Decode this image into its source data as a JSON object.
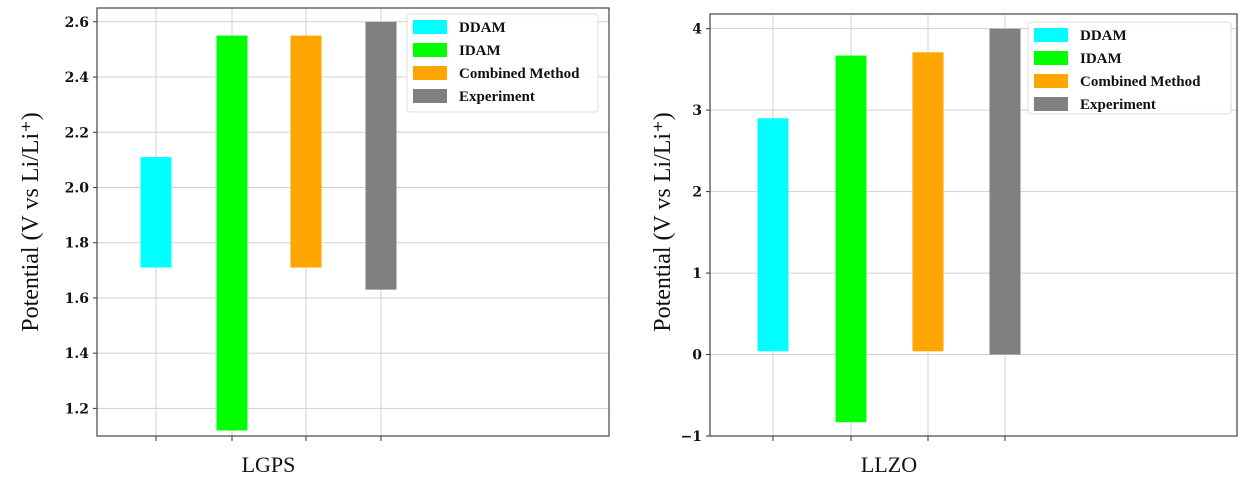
{
  "chart_data": [
    {
      "type": "bar",
      "subtype": "floating-range",
      "xlabel": "LGPS",
      "ylabel": "Potential (V vs Li/Li⁺)",
      "ylim": [
        1.1,
        2.65
      ],
      "yticks": [
        "1.2",
        "1.4",
        "1.6",
        "1.8",
        "2.0",
        "2.2",
        "2.4",
        "2.6"
      ],
      "grid": true,
      "legend": "top-right",
      "series": [
        {
          "name": "DDAM",
          "color": "#00FFFF",
          "low": 1.71,
          "high": 2.11
        },
        {
          "name": "IDAM",
          "color": "#00FF00",
          "low": 1.12,
          "high": 2.55
        },
        {
          "name": "Combined Method",
          "color": "#FFA500",
          "low": 1.71,
          "high": 2.55
        },
        {
          "name": "Experiment",
          "color": "#808080",
          "low": 1.63,
          "high": 2.6
        }
      ]
    },
    {
      "type": "bar",
      "subtype": "floating-range",
      "xlabel": "LLZO",
      "ylabel": "Potential (V vs Li/Li⁺)",
      "ylim": [
        -1,
        4.18
      ],
      "yticks": [
        "−1",
        "0",
        "1",
        "2",
        "3",
        "4"
      ],
      "grid": true,
      "legend": "top-right",
      "series": [
        {
          "name": "DDAM",
          "color": "#00FFFF",
          "low": 0.04,
          "high": 2.9
        },
        {
          "name": "IDAM",
          "color": "#00FF00",
          "low": -0.83,
          "high": 3.67
        },
        {
          "name": "Combined Method",
          "color": "#FFA500",
          "low": 0.04,
          "high": 3.71
        },
        {
          "name": "Experiment",
          "color": "#808080",
          "low": 0.0,
          "high": 4.0
        }
      ]
    }
  ]
}
